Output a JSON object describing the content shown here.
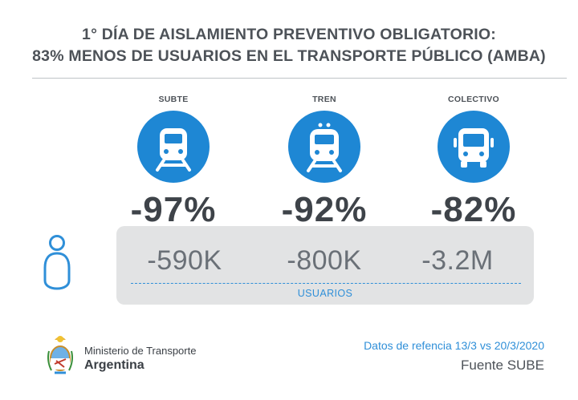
{
  "header": {
    "title_line1": "1° DÍA DE AISLAMIENTO PREVENTIVO OBLIGATORIO:",
    "title_line2": "83% MENOS DE USUARIOS EN EL TRANSPORTE PÚBLICO (AMBA)"
  },
  "modes": [
    {
      "label": "SUBTE",
      "icon": "subway-train-icon",
      "percent": "-97%",
      "users": "-590K"
    },
    {
      "label": "TREN",
      "icon": "train-icon",
      "percent": "-92%",
      "users": "-800K"
    },
    {
      "label": "COLECTIVO",
      "icon": "bus-icon",
      "percent": "-82%",
      "users": "-3.2M"
    }
  ],
  "users": {
    "icon": "person-icon",
    "label": "USUARIOS"
  },
  "footer": {
    "ministry": "Ministerio de Transporte",
    "country": "Argentina",
    "dates": "Datos de refencia 13/3 vs 20/3/2020",
    "source": "Fuente SUBE"
  },
  "colors": {
    "accent": "#1e87d4",
    "text": "#3e4349",
    "panel": "#e2e3e4"
  }
}
